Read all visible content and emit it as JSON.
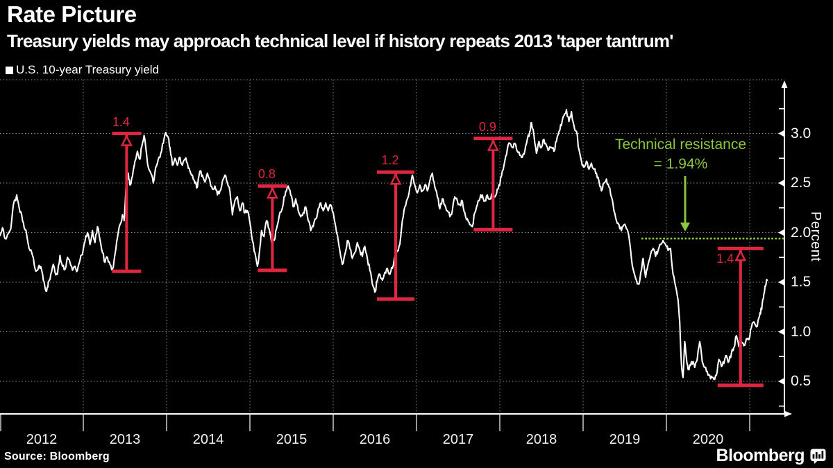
{
  "header": {
    "title": "Rate Picture",
    "subtitle": "Treasury yields may approach technical level if history repeats 2013 'taper tantrum'"
  },
  "legend": {
    "label": "U.S. 10-year Treasury yield"
  },
  "footer": {
    "source": "Source: Bloomberg",
    "brand": "Bloomberg"
  },
  "icons": {
    "legend_swatch": "filled-square",
    "brand_icon": "bloomberg-terminal-bars"
  },
  "colors": {
    "background": "#000000",
    "line": "#ffffff",
    "red": "#e02540",
    "green": "#8cc63c",
    "grid": "#a8a8a8",
    "axis": "#ffffff",
    "tick_text": "#f2f2f2"
  },
  "chart_data": {
    "type": "line",
    "title": "Rate Picture",
    "series_name": "U.S. 10-year Treasury yield",
    "xlabel": "",
    "ylabel": "Percent",
    "ylim": [
      0.17,
      3.54
    ],
    "xlim": [
      2012,
      2021.42
    ],
    "grid": true,
    "legend_position": "top-left",
    "y_ticks": [
      0.5,
      1.0,
      1.5,
      2.0,
      2.5,
      3.0
    ],
    "y_tick_labels": [
      "0.5",
      "1.0",
      "1.5",
      "2.0",
      "2.5",
      "3.0"
    ],
    "x_tick_labels": [
      "2012",
      "2013",
      "2014",
      "2015",
      "2016",
      "2017",
      "2018",
      "2019",
      "2020"
    ],
    "resistance": {
      "label_line1": "Technical resistance",
      "label_line2": "= 1.94%",
      "value": 1.94
    },
    "annotations": [
      {
        "label": "1.4",
        "x": 2013.52,
        "from": 1.61,
        "to": 3.0,
        "cap_w": 42,
        "label_side": "above"
      },
      {
        "label": "0.8",
        "x": 2015.27,
        "from": 1.62,
        "to": 2.47,
        "cap_w": 42,
        "label_side": "above"
      },
      {
        "label": "1.2",
        "x": 2016.75,
        "from": 1.33,
        "to": 2.61,
        "cap_w": 54,
        "label_side": "above"
      },
      {
        "label": "0.9",
        "x": 2017.92,
        "from": 2.03,
        "to": 2.95,
        "cap_w": 56,
        "label_side": "above"
      },
      {
        "label": "1.4",
        "x": 2020.89,
        "from": 0.46,
        "to": 1.84,
        "cap_w": 66,
        "label_side": "below"
      }
    ],
    "points": [
      [
        2012.0,
        1.97
      ],
      [
        2012.03,
        2.05
      ],
      [
        2012.06,
        1.94
      ],
      [
        2012.09,
        1.98
      ],
      [
        2012.13,
        2.04
      ],
      [
        2012.16,
        2.28
      ],
      [
        2012.2,
        2.38
      ],
      [
        2012.23,
        2.25
      ],
      [
        2012.26,
        2.18
      ],
      [
        2012.29,
        2.05
      ],
      [
        2012.32,
        1.98
      ],
      [
        2012.36,
        1.82
      ],
      [
        2012.39,
        1.77
      ],
      [
        2012.42,
        1.64
      ],
      [
        2012.45,
        1.62
      ],
      [
        2012.47,
        1.67
      ],
      [
        2012.5,
        1.62
      ],
      [
        2012.53,
        1.5
      ],
      [
        2012.56,
        1.41
      ],
      [
        2012.58,
        1.5
      ],
      [
        2012.61,
        1.58
      ],
      [
        2012.64,
        1.68
      ],
      [
        2012.66,
        1.6
      ],
      [
        2012.69,
        1.58
      ],
      [
        2012.72,
        1.77
      ],
      [
        2012.75,
        1.66
      ],
      [
        2012.78,
        1.63
      ],
      [
        2012.81,
        1.75
      ],
      [
        2012.84,
        1.7
      ],
      [
        2012.87,
        1.62
      ],
      [
        2012.9,
        1.66
      ],
      [
        2012.93,
        1.62
      ],
      [
        2012.96,
        1.72
      ],
      [
        2012.99,
        1.78
      ],
      [
        2013.02,
        1.91
      ],
      [
        2013.05,
        2.0
      ],
      [
        2013.08,
        1.88
      ],
      [
        2013.11,
        2.02
      ],
      [
        2013.14,
        1.9
      ],
      [
        2013.17,
        2.06
      ],
      [
        2013.2,
        1.93
      ],
      [
        2013.23,
        1.8
      ],
      [
        2013.26,
        1.7
      ],
      [
        2013.29,
        1.75
      ],
      [
        2013.32,
        1.68
      ],
      [
        2013.35,
        1.63
      ],
      [
        2013.38,
        1.78
      ],
      [
        2013.41,
        1.95
      ],
      [
        2013.44,
        2.08
      ],
      [
        2013.47,
        2.18
      ],
      [
        2013.49,
        2.12
      ],
      [
        2013.52,
        2.55
      ],
      [
        2013.54,
        2.6
      ],
      [
        2013.56,
        2.48
      ],
      [
        2013.59,
        2.57
      ],
      [
        2013.62,
        2.72
      ],
      [
        2013.65,
        2.82
      ],
      [
        2013.68,
        2.74
      ],
      [
        2013.7,
        2.86
      ],
      [
        2013.73,
        2.98
      ],
      [
        2013.75,
        2.86
      ],
      [
        2013.78,
        2.66
      ],
      [
        2013.81,
        2.6
      ],
      [
        2013.84,
        2.5
      ],
      [
        2013.87,
        2.66
      ],
      [
        2013.9,
        2.74
      ],
      [
        2013.93,
        2.8
      ],
      [
        2013.96,
        2.9
      ],
      [
        2013.99,
        3.01
      ],
      [
        2014.02,
        2.96
      ],
      [
        2014.04,
        2.86
      ],
      [
        2014.07,
        2.68
      ],
      [
        2014.1,
        2.75
      ],
      [
        2014.13,
        2.68
      ],
      [
        2014.16,
        2.76
      ],
      [
        2014.19,
        2.68
      ],
      [
        2014.22,
        2.74
      ],
      [
        2014.25,
        2.7
      ],
      [
        2014.28,
        2.62
      ],
      [
        2014.31,
        2.58
      ],
      [
        2014.34,
        2.5
      ],
      [
        2014.37,
        2.46
      ],
      [
        2014.4,
        2.62
      ],
      [
        2014.43,
        2.58
      ],
      [
        2014.46,
        2.51
      ],
      [
        2014.49,
        2.6
      ],
      [
        2014.52,
        2.52
      ],
      [
        2014.55,
        2.44
      ],
      [
        2014.58,
        2.47
      ],
      [
        2014.61,
        2.38
      ],
      [
        2014.64,
        2.42
      ],
      [
        2014.67,
        2.52
      ],
      [
        2014.7,
        2.58
      ],
      [
        2014.73,
        2.5
      ],
      [
        2014.76,
        2.42
      ],
      [
        2014.79,
        2.18
      ],
      [
        2014.82,
        2.32
      ],
      [
        2014.85,
        2.36
      ],
      [
        2014.88,
        2.22
      ],
      [
        2014.91,
        2.3
      ],
      [
        2014.94,
        2.2
      ],
      [
        2014.97,
        2.22
      ],
      [
        2015.0,
        2.1
      ],
      [
        2015.03,
        1.92
      ],
      [
        2015.06,
        1.8
      ],
      [
        2015.09,
        1.66
      ],
      [
        2015.12,
        1.85
      ],
      [
        2015.14,
        2.02
      ],
      [
        2015.17,
        1.96
      ],
      [
        2015.2,
        2.12
      ],
      [
        2015.23,
        2.04
      ],
      [
        2015.26,
        1.9
      ],
      [
        2015.29,
        1.92
      ],
      [
        2015.32,
        2.04
      ],
      [
        2015.35,
        2.16
      ],
      [
        2015.38,
        2.22
      ],
      [
        2015.41,
        2.36
      ],
      [
        2015.44,
        2.42
      ],
      [
        2015.46,
        2.47
      ],
      [
        2015.49,
        2.38
      ],
      [
        2015.52,
        2.26
      ],
      [
        2015.55,
        2.34
      ],
      [
        2015.58,
        2.22
      ],
      [
        2015.61,
        2.16
      ],
      [
        2015.64,
        2.2
      ],
      [
        2015.67,
        2.26
      ],
      [
        2015.7,
        2.12
      ],
      [
        2015.73,
        2.02
      ],
      [
        2015.76,
        2.06
      ],
      [
        2015.79,
        2.14
      ],
      [
        2015.82,
        2.24
      ],
      [
        2015.85,
        2.3
      ],
      [
        2015.88,
        2.22
      ],
      [
        2015.91,
        2.3
      ],
      [
        2015.94,
        2.22
      ],
      [
        2015.97,
        2.28
      ],
      [
        2016.0,
        2.2
      ],
      [
        2016.03,
        2.06
      ],
      [
        2016.06,
        1.92
      ],
      [
        2016.09,
        1.76
      ],
      [
        2016.11,
        1.68
      ],
      [
        2016.14,
        1.78
      ],
      [
        2016.17,
        1.92
      ],
      [
        2016.2,
        1.84
      ],
      [
        2016.23,
        1.74
      ],
      [
        2016.26,
        1.8
      ],
      [
        2016.29,
        1.9
      ],
      [
        2016.32,
        1.82
      ],
      [
        2016.35,
        1.76
      ],
      [
        2016.38,
        1.86
      ],
      [
        2016.41,
        1.74
      ],
      [
        2016.44,
        1.62
      ],
      [
        2016.47,
        1.48
      ],
      [
        2016.5,
        1.4
      ],
      [
        2016.53,
        1.52
      ],
      [
        2016.56,
        1.58
      ],
      [
        2016.59,
        1.52
      ],
      [
        2016.62,
        1.6
      ],
      [
        2016.65,
        1.64
      ],
      [
        2016.68,
        1.58
      ],
      [
        2016.71,
        1.64
      ],
      [
        2016.74,
        1.76
      ],
      [
        2016.77,
        1.82
      ],
      [
        2016.8,
        1.88
      ],
      [
        2016.83,
        2.12
      ],
      [
        2016.86,
        2.26
      ],
      [
        2016.89,
        2.34
      ],
      [
        2016.92,
        2.46
      ],
      [
        2016.95,
        2.58
      ],
      [
        2016.98,
        2.48
      ],
      [
        2017.01,
        2.4
      ],
      [
        2017.04,
        2.48
      ],
      [
        2017.07,
        2.42
      ],
      [
        2017.1,
        2.48
      ],
      [
        2017.13,
        2.42
      ],
      [
        2017.16,
        2.52
      ],
      [
        2017.19,
        2.6
      ],
      [
        2017.22,
        2.46
      ],
      [
        2017.25,
        2.36
      ],
      [
        2017.28,
        2.24
      ],
      [
        2017.31,
        2.34
      ],
      [
        2017.34,
        2.28
      ],
      [
        2017.37,
        2.22
      ],
      [
        2017.4,
        2.16
      ],
      [
        2017.43,
        2.22
      ],
      [
        2017.46,
        2.36
      ],
      [
        2017.49,
        2.32
      ],
      [
        2017.52,
        2.28
      ],
      [
        2017.55,
        2.32
      ],
      [
        2017.58,
        2.2
      ],
      [
        2017.61,
        2.14
      ],
      [
        2017.64,
        2.08
      ],
      [
        2017.67,
        2.06
      ],
      [
        2017.7,
        2.2
      ],
      [
        2017.73,
        2.28
      ],
      [
        2017.76,
        2.34
      ],
      [
        2017.79,
        2.38
      ],
      [
        2017.82,
        2.32
      ],
      [
        2017.85,
        2.38
      ],
      [
        2017.88,
        2.34
      ],
      [
        2017.91,
        2.4
      ],
      [
        2017.94,
        2.36
      ],
      [
        2017.97,
        2.44
      ],
      [
        2018.0,
        2.48
      ],
      [
        2018.03,
        2.62
      ],
      [
        2018.06,
        2.72
      ],
      [
        2018.09,
        2.84
      ],
      [
        2018.12,
        2.9
      ],
      [
        2018.15,
        2.86
      ],
      [
        2018.18,
        2.9
      ],
      [
        2018.21,
        2.82
      ],
      [
        2018.24,
        2.78
      ],
      [
        2018.27,
        2.76
      ],
      [
        2018.3,
        2.82
      ],
      [
        2018.33,
        2.94
      ],
      [
        2018.36,
        3.02
      ],
      [
        2018.38,
        3.11
      ],
      [
        2018.41,
        2.98
      ],
      [
        2018.44,
        2.8
      ],
      [
        2018.47,
        2.92
      ],
      [
        2018.5,
        2.86
      ],
      [
        2018.53,
        2.94
      ],
      [
        2018.56,
        2.88
      ],
      [
        2018.59,
        2.84
      ],
      [
        2018.62,
        2.86
      ],
      [
        2018.65,
        2.82
      ],
      [
        2018.68,
        2.92
      ],
      [
        2018.71,
        3.02
      ],
      [
        2018.74,
        3.08
      ],
      [
        2018.77,
        3.18
      ],
      [
        2018.8,
        3.24
      ],
      [
        2018.83,
        3.12
      ],
      [
        2018.86,
        3.22
      ],
      [
        2018.89,
        3.08
      ],
      [
        2018.92,
        3.02
      ],
      [
        2018.95,
        2.84
      ],
      [
        2018.98,
        2.72
      ],
      [
        2019.01,
        2.66
      ],
      [
        2019.04,
        2.72
      ],
      [
        2019.07,
        2.64
      ],
      [
        2019.1,
        2.7
      ],
      [
        2019.13,
        2.64
      ],
      [
        2019.16,
        2.6
      ],
      [
        2019.19,
        2.52
      ],
      [
        2019.22,
        2.42
      ],
      [
        2019.25,
        2.5
      ],
      [
        2019.28,
        2.54
      ],
      [
        2019.31,
        2.46
      ],
      [
        2019.34,
        2.36
      ],
      [
        2019.37,
        2.22
      ],
      [
        2019.4,
        2.12
      ],
      [
        2019.43,
        2.08
      ],
      [
        2019.46,
        2.02
      ],
      [
        2019.49,
        2.08
      ],
      [
        2019.52,
        2.04
      ],
      [
        2019.55,
        1.96
      ],
      [
        2019.58,
        1.74
      ],
      [
        2019.61,
        1.6
      ],
      [
        2019.64,
        1.52
      ],
      [
        2019.67,
        1.48
      ],
      [
        2019.7,
        1.62
      ],
      [
        2019.72,
        1.74
      ],
      [
        2019.75,
        1.55
      ],
      [
        2019.78,
        1.68
      ],
      [
        2019.81,
        1.78
      ],
      [
        2019.84,
        1.84
      ],
      [
        2019.87,
        1.76
      ],
      [
        2019.9,
        1.82
      ],
      [
        2019.93,
        1.88
      ],
      [
        2019.96,
        1.92
      ],
      [
        2019.99,
        1.88
      ],
      [
        2020.02,
        1.82
      ],
      [
        2020.05,
        1.84
      ],
      [
        2020.08,
        1.58
      ],
      [
        2020.11,
        1.46
      ],
      [
        2020.14,
        1.32
      ],
      [
        2020.16,
        1.1
      ],
      [
        2020.18,
        0.68
      ],
      [
        2020.2,
        0.54
      ],
      [
        2020.22,
        0.9
      ],
      [
        2020.24,
        0.74
      ],
      [
        2020.26,
        0.62
      ],
      [
        2020.29,
        0.66
      ],
      [
        2020.32,
        0.7
      ],
      [
        2020.34,
        0.64
      ],
      [
        2020.37,
        0.72
      ],
      [
        2020.4,
        0.9
      ],
      [
        2020.43,
        0.7
      ],
      [
        2020.46,
        0.64
      ],
      [
        2020.49,
        0.6
      ],
      [
        2020.52,
        0.56
      ],
      [
        2020.55,
        0.54
      ],
      [
        2020.58,
        0.52
      ],
      [
        2020.61,
        0.6
      ],
      [
        2020.63,
        0.72
      ],
      [
        2020.66,
        0.65
      ],
      [
        2020.69,
        0.68
      ],
      [
        2020.72,
        0.76
      ],
      [
        2020.75,
        0.7
      ],
      [
        2020.78,
        0.78
      ],
      [
        2020.81,
        0.84
      ],
      [
        2020.84,
        0.96
      ],
      [
        2020.87,
        0.85
      ],
      [
        2020.9,
        0.9
      ],
      [
        2020.93,
        0.86
      ],
      [
        2020.96,
        0.93
      ],
      [
        2020.99,
        0.92
      ],
      [
        2021.02,
        1.04
      ],
      [
        2021.05,
        1.1
      ],
      [
        2021.08,
        1.05
      ],
      [
        2021.11,
        1.14
      ],
      [
        2021.13,
        1.18
      ],
      [
        2021.15,
        1.28
      ],
      [
        2021.17,
        1.38
      ],
      [
        2021.19,
        1.46
      ],
      [
        2021.21,
        1.52
      ]
    ]
  }
}
